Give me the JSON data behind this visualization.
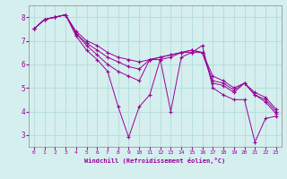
{
  "xlabel": "Windchill (Refroidissement éolien,°C)",
  "x": [
    0,
    1,
    2,
    3,
    4,
    5,
    6,
    7,
    8,
    9,
    10,
    11,
    12,
    13,
    14,
    15,
    16,
    17,
    18,
    19,
    20,
    21,
    22,
    23
  ],
  "series": [
    [
      7.5,
      7.9,
      8.0,
      8.1,
      7.2,
      6.6,
      6.2,
      5.7,
      4.2,
      2.9,
      4.2,
      4.7,
      6.2,
      4.0,
      6.3,
      6.5,
      6.8,
      5.0,
      4.7,
      4.5,
      4.5,
      2.7,
      3.7,
      3.8
    ],
    [
      7.5,
      7.9,
      8.0,
      8.1,
      7.3,
      6.8,
      6.4,
      6.0,
      5.7,
      5.5,
      5.3,
      6.2,
      6.2,
      6.3,
      6.5,
      6.5,
      6.5,
      5.2,
      5.1,
      4.8,
      5.2,
      4.7,
      4.4,
      3.9
    ],
    [
      7.5,
      7.9,
      8.0,
      8.1,
      7.3,
      6.9,
      6.6,
      6.3,
      6.1,
      5.9,
      5.8,
      6.2,
      6.3,
      6.4,
      6.5,
      6.6,
      6.5,
      5.3,
      5.2,
      4.9,
      5.2,
      4.7,
      4.5,
      4.0
    ],
    [
      7.5,
      7.9,
      8.0,
      8.1,
      7.4,
      7.0,
      6.8,
      6.5,
      6.3,
      6.2,
      6.1,
      6.2,
      6.3,
      6.4,
      6.5,
      6.6,
      6.5,
      5.5,
      5.3,
      5.0,
      5.2,
      4.8,
      4.6,
      4.1
    ]
  ],
  "line_color": "#990099",
  "bg_color": "#d5efee",
  "grid_color": "#b8dede",
  "marker": "+",
  "ylim": [
    2.5,
    8.5
  ],
  "yticks": [
    3,
    4,
    5,
    6,
    7,
    8
  ],
  "xticks": [
    0,
    1,
    2,
    3,
    4,
    5,
    6,
    7,
    8,
    9,
    10,
    11,
    12,
    13,
    14,
    15,
    16,
    17,
    18,
    19,
    20,
    21,
    22,
    23
  ]
}
